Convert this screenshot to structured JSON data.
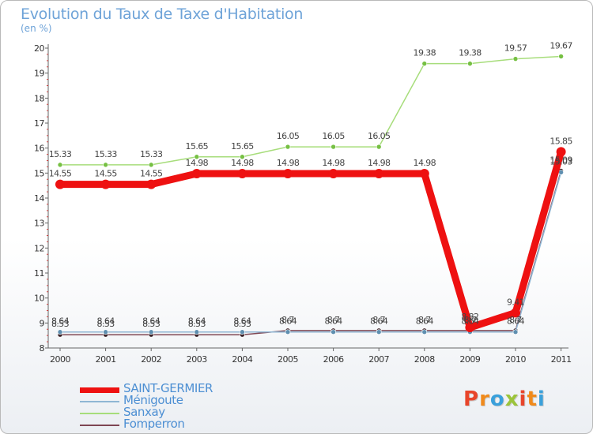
{
  "title": "Evolution du Taux de Taxe d'Habitation",
  "subtitle": "(en %)",
  "logo": {
    "letters": [
      "P",
      "r",
      "o",
      "x",
      "i",
      "t",
      "i"
    ],
    "colors": [
      "#e8452b",
      "#f08a1c",
      "#3aa0db",
      "#9bc43a",
      "#e8452b",
      "#f08a1c",
      "#3aa0db"
    ]
  },
  "chart_data": {
    "type": "line",
    "title": "Evolution du Taux de Taxe d'Habitation",
    "ylabel": "(en %)",
    "xlabel": "",
    "x": [
      "2000",
      "2001",
      "2002",
      "2003",
      "2004",
      "2005",
      "2006",
      "2007",
      "2008",
      "2009",
      "2010",
      "2011"
    ],
    "yticks": [
      "8",
      "9",
      "10",
      "11",
      "12",
      "13",
      "14",
      "15",
      "16",
      "17",
      "18",
      "19",
      "20"
    ],
    "ylim": [
      8,
      20
    ],
    "grid": false,
    "legend": "bottom-left",
    "series": [
      {
        "name": "Sanxay",
        "color": "#a7dd7b",
        "marker": "#76c043",
        "width": 1.5,
        "values": [
          15.33,
          15.33,
          15.33,
          15.65,
          15.65,
          16.05,
          16.05,
          16.05,
          19.38,
          19.38,
          19.57,
          19.67
        ],
        "labels": [
          "15.33",
          "15.33",
          "15.33",
          "15.65",
          "15.65",
          "16.05",
          "16.05",
          "16.05",
          "19.38",
          "19.38",
          "19.57",
          "19.67"
        ]
      },
      {
        "name": "Fomperron",
        "color": "#7e4653",
        "marker": "#3a2228",
        "width": 1.5,
        "values": [
          8.53,
          8.53,
          8.53,
          8.53,
          8.53,
          8.7,
          8.7,
          8.7,
          8.7,
          8.7,
          8.7,
          15.09
        ],
        "labels": [
          "8.53",
          "8.53",
          "8.53",
          "8.53",
          "8.53",
          "8.7",
          "8.7",
          "8.7",
          "8.7",
          "8.7",
          "8.7",
          "15.09"
        ]
      },
      {
        "name": "Ménigoute",
        "color": "#8fb6d4",
        "marker": "#5f8fb0",
        "width": 1.5,
        "values": [
          8.64,
          8.64,
          8.64,
          8.64,
          8.64,
          8.64,
          8.64,
          8.64,
          8.64,
          8.64,
          8.64,
          15.03
        ],
        "labels": [
          "8.64",
          "8.64",
          "8.64",
          "8.64",
          "8.64",
          "8.64",
          "8.64",
          "8.64",
          "8.64",
          "8.64",
          "8.64",
          "15.03"
        ]
      },
      {
        "name": "SAINT-GERMIER",
        "color": "#ee1111",
        "marker": "#ee1111",
        "width": 9,
        "values": [
          14.55,
          14.55,
          14.55,
          14.98,
          14.98,
          14.98,
          14.98,
          14.98,
          14.98,
          8.82,
          9.41,
          15.85
        ],
        "labels": [
          "14.55",
          "14.55",
          "14.55",
          "14.98",
          "14.98",
          "14.98",
          "14.98",
          "14.98",
          "14.98",
          "8.82",
          "9.41",
          "15.85"
        ]
      }
    ],
    "legend_entries": [
      {
        "name": "SAINT-GERMIER",
        "color": "#ee1111",
        "thickness": 7
      },
      {
        "name": "Ménigoute",
        "color": "#8fb6d4",
        "thickness": 2
      },
      {
        "name": "Sanxay",
        "color": "#a7dd7b",
        "thickness": 2
      },
      {
        "name": "Fomperron",
        "color": "#7e4653",
        "thickness": 2
      }
    ]
  }
}
